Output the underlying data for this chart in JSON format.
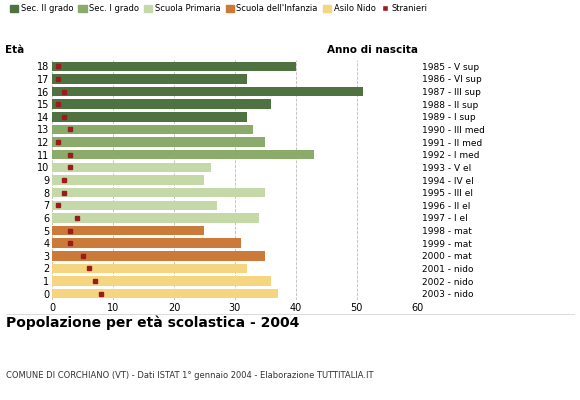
{
  "ages": [
    18,
    17,
    16,
    15,
    14,
    13,
    12,
    11,
    10,
    9,
    8,
    7,
    6,
    5,
    4,
    3,
    2,
    1,
    0
  ],
  "bar_values": [
    40,
    32,
    51,
    36,
    32,
    33,
    35,
    43,
    26,
    25,
    35,
    27,
    34,
    25,
    31,
    35,
    32,
    36,
    37
  ],
  "stranieri": [
    1,
    1,
    2,
    1,
    2,
    3,
    1,
    3,
    3,
    2,
    2,
    1,
    4,
    3,
    3,
    5,
    6,
    7,
    8
  ],
  "bar_colors": {
    "Sec. II grado": "#4e7340",
    "Sec. I grado": "#8aab6a",
    "Scuola Primaria": "#c5d9a8",
    "Scuola dell'Infanzia": "#cc7a3a",
    "Asilo Nido": "#f5d580"
  },
  "age_colors": {
    "18": "Sec. II grado",
    "17": "Sec. II grado",
    "16": "Sec. II grado",
    "15": "Sec. II grado",
    "14": "Sec. II grado",
    "13": "Sec. I grado",
    "12": "Sec. I grado",
    "11": "Sec. I grado",
    "10": "Scuola Primaria",
    "9": "Scuola Primaria",
    "8": "Scuola Primaria",
    "7": "Scuola Primaria",
    "6": "Scuola Primaria",
    "5": "Scuola dell'Infanzia",
    "4": "Scuola dell'Infanzia",
    "3": "Scuola dell'Infanzia",
    "2": "Asilo Nido",
    "1": "Asilo Nido",
    "0": "Asilo Nido"
  },
  "right_labels": {
    "18": "1985 - V sup",
    "17": "1986 - VI sup",
    "16": "1987 - III sup",
    "15": "1988 - II sup",
    "14": "1989 - I sup",
    "13": "1990 - III med",
    "12": "1991 - II med",
    "11": "1992 - I med",
    "10": "1993 - V el",
    "9": "1994 - IV el",
    "8": "1995 - III el",
    "7": "1996 - II el",
    "6": "1997 - I el",
    "5": "1998 - mat",
    "4": "1999 - mat",
    "3": "2000 - mat",
    "2": "2001 - nido",
    "1": "2002 - nido",
    "0": "2003 - nido"
  },
  "title": "Popolazione per età scolastica - 2004",
  "subtitle": "COMUNE DI CORCHIANO (VT) - Dati ISTAT 1° gennaio 2004 - Elaborazione TUTTITALIA.IT",
  "xlabel_left": "Età",
  "xlabel_right": "Anno di nascita",
  "xlim": [
    0,
    60
  ],
  "xticks": [
    0,
    10,
    20,
    30,
    40,
    50,
    60
  ],
  "legend_labels": [
    "Sec. II grado",
    "Sec. I grado",
    "Scuola Primaria",
    "Scuola dell'Infanzia",
    "Asilo Nido",
    "Stranieri"
  ],
  "stranieri_color": "#9b1c1c",
  "background_color": "#ffffff",
  "grid_color": "#bbbbbb"
}
